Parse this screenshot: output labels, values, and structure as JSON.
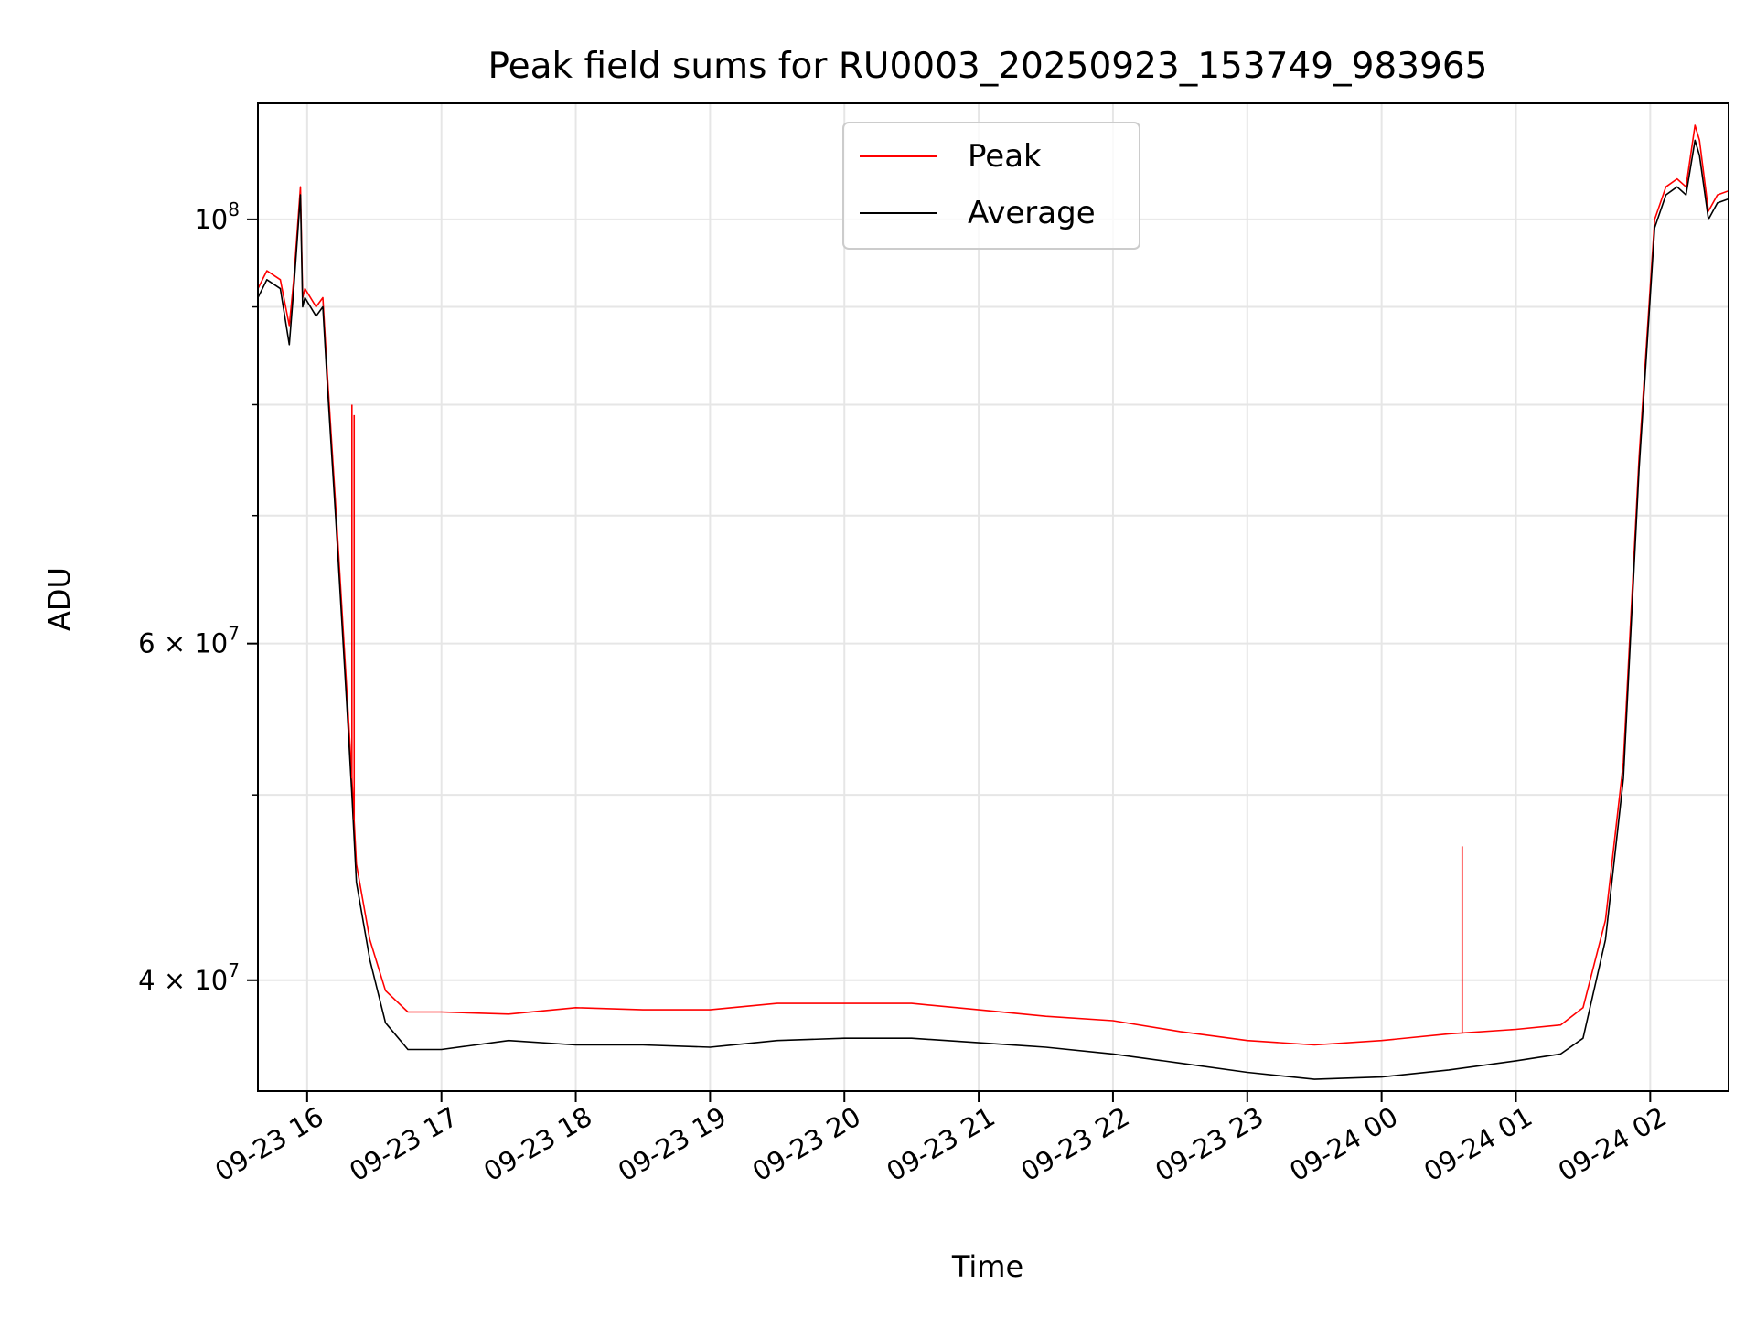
{
  "chart_data": {
    "type": "line",
    "title": "Peak field sums for RU0003_20250923_153749_983965",
    "xlabel": "Time",
    "ylabel": "ADU",
    "y_scale": "log",
    "ylim": [
      35000000,
      115000000
    ],
    "xlim": [
      "2025-09-23 15:38",
      "2025-09-24 02:35"
    ],
    "x_ticks": [
      "2025-09-23 16:00",
      "2025-09-23 17:00",
      "2025-09-23 18:00",
      "2025-09-23 19:00",
      "2025-09-23 20:00",
      "2025-09-23 21:00",
      "2025-09-23 22:00",
      "2025-09-23 23:00",
      "2025-09-24 00:00",
      "2025-09-24 01:00",
      "2025-09-24 02:00"
    ],
    "x_tick_labels": [
      "09-23 16",
      "09-23 17",
      "09-23 18",
      "09-23 19",
      "09-23 20",
      "09-23 21",
      "09-23 22",
      "09-23 23",
      "09-24 00",
      "09-24 01",
      "09-24 02"
    ],
    "y_ticks": [
      40000000,
      60000000,
      100000000
    ],
    "y_tick_labels": [
      "4 × 10⁷",
      "6 × 10⁷",
      "10⁸"
    ],
    "y_tick_labels_display": [
      [
        "4",
        "7"
      ],
      [
        "6",
        "7"
      ],
      [
        "10",
        "8"
      ]
    ],
    "y_minor_ticks": [
      50000000,
      70000000,
      80000000,
      90000000
    ],
    "grid": true,
    "legend_position": "top-center",
    "series": [
      {
        "name": "Peak",
        "color": "#ff0000",
        "x": [
          "2025-09-23 15:38",
          "2025-09-23 15:42",
          "2025-09-23 15:48",
          "2025-09-23 15:52",
          "2025-09-23 15:54",
          "2025-09-23 15:57",
          "2025-09-23 15:58",
          "2025-09-23 15:59",
          "2025-09-23 16:04",
          "2025-09-23 16:07",
          "2025-09-23 16:09",
          "2025-09-23 16:13",
          "2025-09-23 16:18",
          "2025-09-23 16:20",
          "2025-09-23 16:22",
          "2025-09-23 16:28",
          "2025-09-23 16:35",
          "2025-09-23 16:45",
          "2025-09-23 17:00",
          "2025-09-23 17:30",
          "2025-09-23 18:00",
          "2025-09-23 18:30",
          "2025-09-23 19:00",
          "2025-09-23 19:30",
          "2025-09-23 20:00",
          "2025-09-23 20:30",
          "2025-09-23 21:00",
          "2025-09-23 21:30",
          "2025-09-23 22:00",
          "2025-09-23 22:30",
          "2025-09-23 23:00",
          "2025-09-23 23:30",
          "2025-09-24 00:00",
          "2025-09-24 00:30",
          "2025-09-24 01:00",
          "2025-09-24 01:20",
          "2025-09-24 01:30",
          "2025-09-24 01:40",
          "2025-09-24 01:48",
          "2025-09-24 01:55",
          "2025-09-24 02:02",
          "2025-09-24 02:07",
          "2025-09-24 02:12",
          "2025-09-24 02:16",
          "2025-09-24 02:20",
          "2025-09-24 02:22",
          "2025-09-24 02:26",
          "2025-09-24 02:30",
          "2025-09-24 02:35"
        ],
        "values": [
          92000000,
          94000000,
          93000000,
          88000000,
          93000000,
          104000000,
          91000000,
          92000000,
          90000000,
          91000000,
          83000000,
          70000000,
          56000000,
          51000000,
          46000000,
          42000000,
          39500000,
          38500000,
          38500000,
          38400000,
          38700000,
          38600000,
          38600000,
          38900000,
          38900000,
          38900000,
          38600000,
          38300000,
          38100000,
          37600000,
          37200000,
          37000000,
          37200000,
          37500000,
          37700000,
          37900000,
          38700000,
          43000000,
          52000000,
          75000000,
          100000000,
          104000000,
          105000000,
          104000000,
          112000000,
          110000000,
          101000000,
          103000000,
          103500000
        ]
      },
      {
        "name": "Average",
        "color": "#000000",
        "x": [
          "2025-09-23 15:38",
          "2025-09-23 15:42",
          "2025-09-23 15:48",
          "2025-09-23 15:52",
          "2025-09-23 15:54",
          "2025-09-23 15:57",
          "2025-09-23 15:58",
          "2025-09-23 15:59",
          "2025-09-23 16:04",
          "2025-09-23 16:07",
          "2025-09-23 16:09",
          "2025-09-23 16:13",
          "2025-09-23 16:18",
          "2025-09-23 16:20",
          "2025-09-23 16:22",
          "2025-09-23 16:28",
          "2025-09-23 16:35",
          "2025-09-23 16:45",
          "2025-09-23 17:00",
          "2025-09-23 17:30",
          "2025-09-23 18:00",
          "2025-09-23 18:30",
          "2025-09-23 19:00",
          "2025-09-23 19:30",
          "2025-09-23 20:00",
          "2025-09-23 20:30",
          "2025-09-23 21:00",
          "2025-09-23 21:30",
          "2025-09-23 22:00",
          "2025-09-23 22:30",
          "2025-09-23 23:00",
          "2025-09-23 23:30",
          "2025-09-24 00:00",
          "2025-09-24 00:30",
          "2025-09-24 01:00",
          "2025-09-24 01:20",
          "2025-09-24 01:30",
          "2025-09-24 01:40",
          "2025-09-24 01:48",
          "2025-09-24 01:55",
          "2025-09-24 02:02",
          "2025-09-24 02:07",
          "2025-09-24 02:12",
          "2025-09-24 02:16",
          "2025-09-24 02:20",
          "2025-09-24 02:22",
          "2025-09-24 02:26",
          "2025-09-24 02:30",
          "2025-09-24 02:35"
        ],
        "values": [
          91000000,
          93000000,
          92000000,
          86000000,
          92000000,
          103000000,
          90000000,
          91000000,
          89000000,
          90000000,
          82000000,
          69000000,
          55000000,
          50000000,
          45000000,
          41000000,
          38000000,
          36800000,
          36800000,
          37200000,
          37000000,
          37000000,
          36900000,
          37200000,
          37300000,
          37300000,
          37100000,
          36900000,
          36600000,
          36200000,
          35800000,
          35500000,
          35600000,
          35900000,
          36300000,
          36600000,
          37300000,
          42000000,
          51000000,
          74000000,
          99000000,
          103000000,
          104000000,
          103000000,
          110000000,
          108000000,
          100000000,
          102000000,
          102500000
        ]
      }
    ],
    "annotations": [
      {
        "series": "Peak",
        "x": "2025-09-23 16:20",
        "value": 80000000
      },
      {
        "series": "Peak",
        "x": "2025-09-23 16:21",
        "value": 79000000
      },
      {
        "series": "Peak",
        "x": "2025-09-24 00:36",
        "value": 47000000
      }
    ]
  }
}
